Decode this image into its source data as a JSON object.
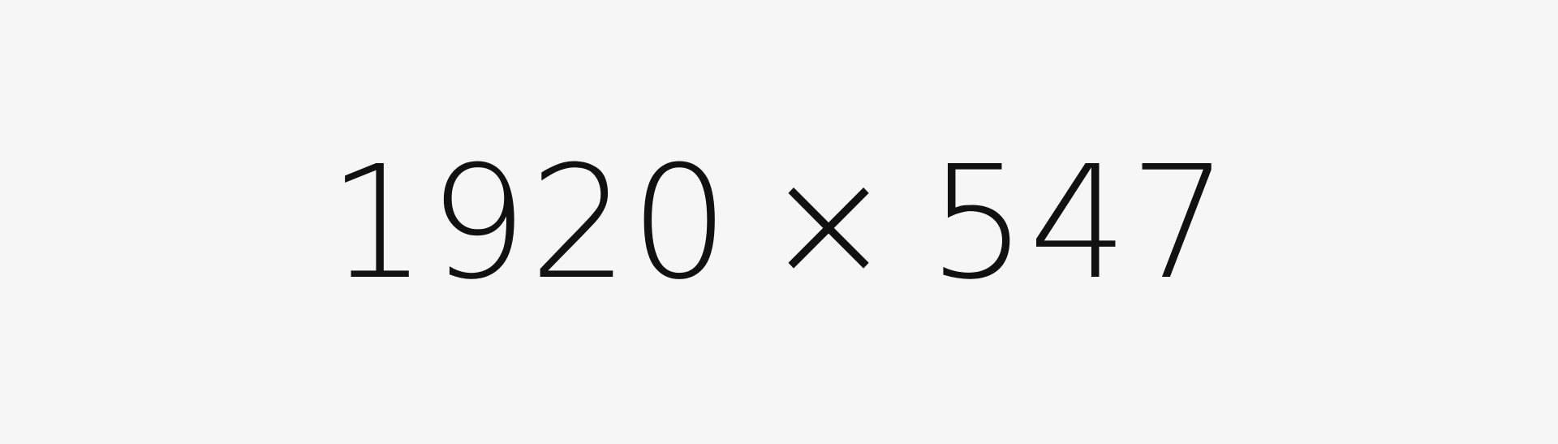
{
  "placeholder": {
    "width_text": "1920",
    "separator": "×",
    "height_text": "547",
    "background_color": "#f6f6f6",
    "text_color": "#111111"
  }
}
